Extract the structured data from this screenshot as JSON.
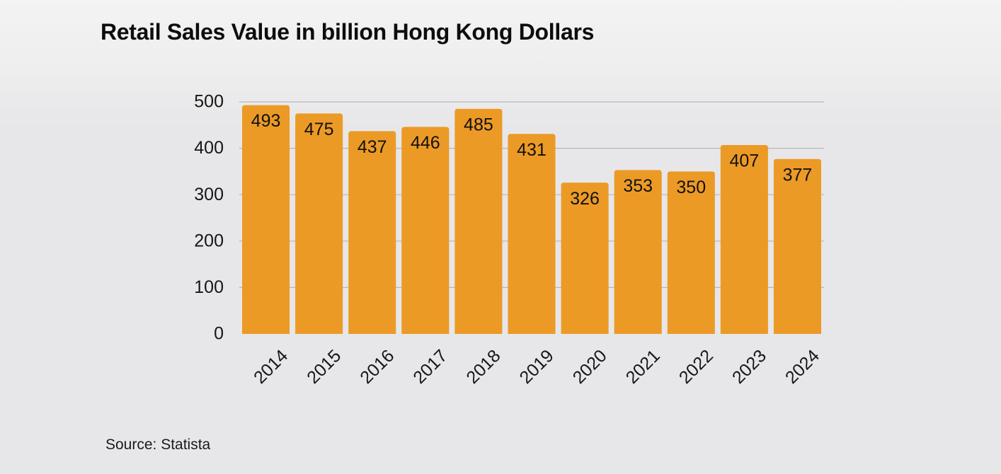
{
  "chart_data": {
    "type": "bar",
    "title": "Retail Sales Value in billion Hong Kong Dollars",
    "categories": [
      "2014",
      "2015",
      "2016",
      "2017",
      "2018",
      "2019",
      "2020",
      "2021",
      "2022",
      "2023",
      "2024"
    ],
    "values": [
      493,
      475,
      437,
      446,
      485,
      431,
      326,
      353,
      350,
      407,
      377
    ],
    "data_labels": [
      "493",
      "475",
      "437",
      "446",
      "485",
      "431",
      "326",
      "353",
      "350",
      "407",
      "377"
    ],
    "yticks": [
      "0",
      "100",
      "200",
      "300",
      "400",
      "500"
    ],
    "ylim": [
      0,
      500
    ],
    "xlabel": "",
    "ylabel": "",
    "grid": true,
    "legend": "none",
    "bar_color": "#ec9a26",
    "grid_color": "#b7b7b9"
  },
  "source": "Source: Statista"
}
